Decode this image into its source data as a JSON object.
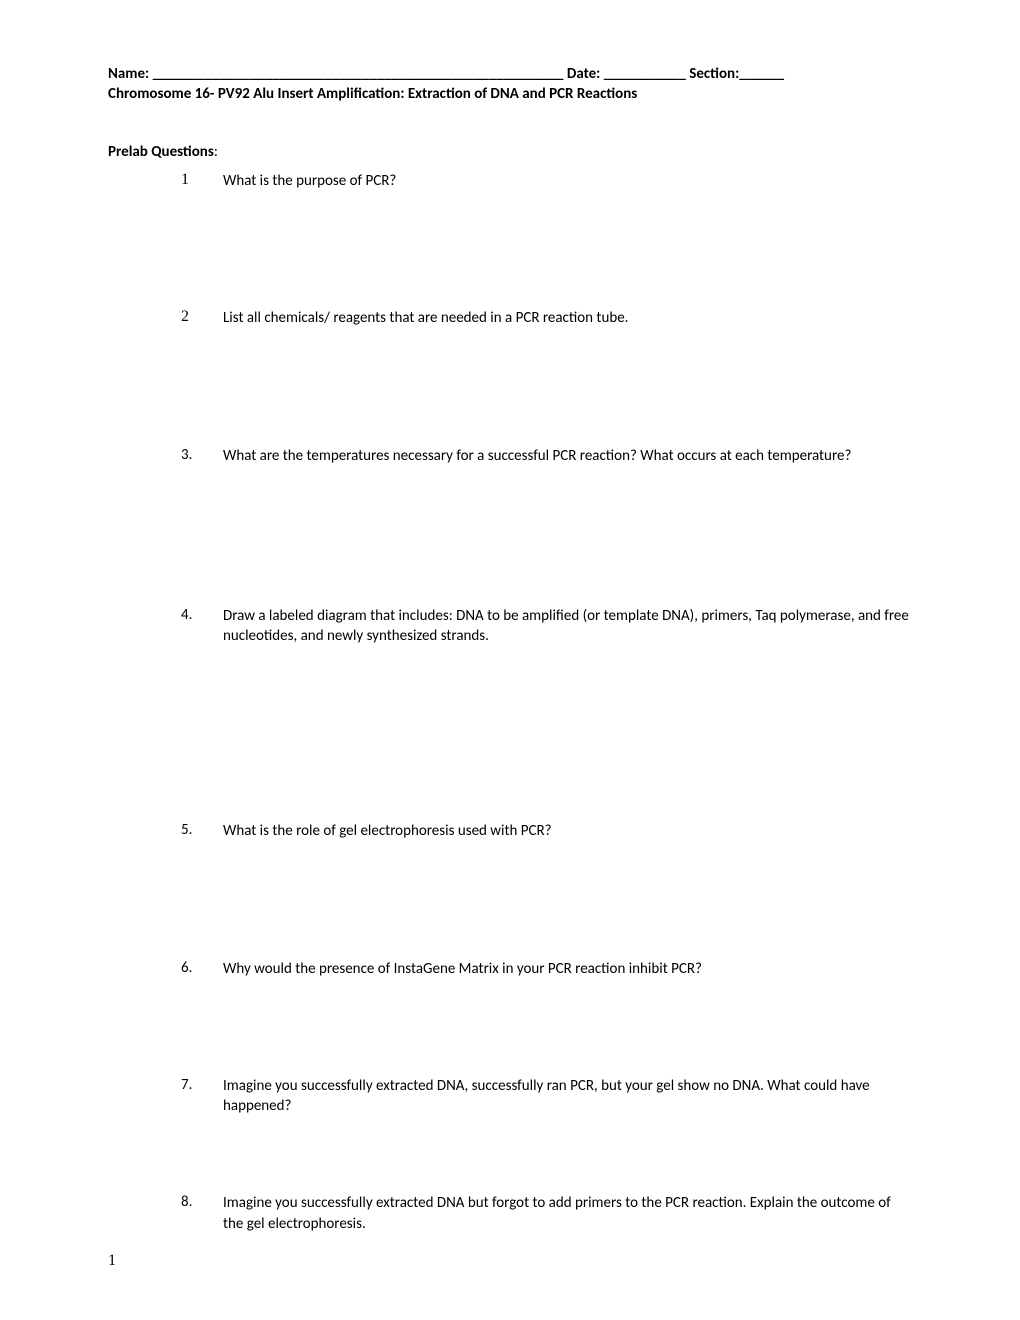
{
  "header": {
    "name_label": "Name: ",
    "name_blank": "_______________________________________________________",
    "date_label": " Date: ",
    "date_blank": "___________",
    "section_label": " Section:",
    "section_blank": "______"
  },
  "subtitle": "Chromosome 16- PV92 Alu Insert Amplification: Extraction of DNA and PCR Reactions",
  "section_title": "Prelab Questions",
  "section_title_colon": ":",
  "questions": [
    {
      "num": "1",
      "text": "What is the purpose of PCR?",
      "serif": true,
      "gap_after": 117
    },
    {
      "num": "2",
      "text": "List all chemicals/ reagents that are needed in a PCR reaction tube.",
      "serif": true,
      "gap_after": 117
    },
    {
      "num": "3.",
      "text": "What are the temperatures necessary for a successful PCR reaction? What occurs at each temperature?",
      "serif": false,
      "gap_after": 140
    },
    {
      "num": "4.",
      "text": "Draw a labeled diagram that includes: DNA to be amplified (or template DNA), primers, Taq polymerase, and free nucleotides, and newly synthesized strands.",
      "serif": false,
      "gap_after": 175
    },
    {
      "num": "5.",
      "text": "What is the role of gel electrophoresis used with PCR?",
      "serif": false,
      "gap_after": 117
    },
    {
      "num": "6.",
      "text": "Why would the presence of InstaGene Matrix in your PCR reaction inhibit PCR?",
      "serif": false,
      "gap_after": 97
    },
    {
      "num": "7.",
      "text": "Imagine you successfully extracted DNA, successfully ran PCR, but your gel show no DNA. What could have happened?",
      "serif": false,
      "gap_after": 77
    },
    {
      "num": "8.",
      "text": "Imagine you successfully extracted DNA but forgot to add primers to the PCR reaction. Explain the outcome of the gel electrophoresis.",
      "serif": false,
      "gap_after": 0
    }
  ],
  "page_number": "1"
}
